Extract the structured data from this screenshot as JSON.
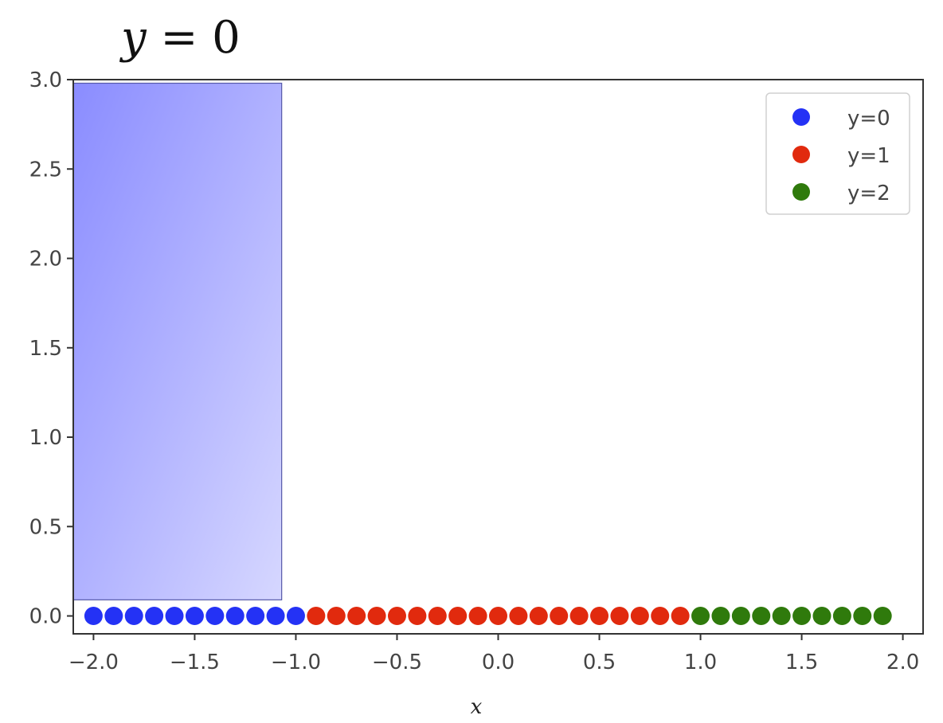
{
  "chart_data": {
    "type": "scatter",
    "title": "y = 0",
    "xlabel": "x",
    "ylabel": "",
    "xlim": [
      -2.1,
      2.1
    ],
    "ylim": [
      -0.1,
      3.0
    ],
    "grid": false,
    "legend_position": "top-right",
    "x_ticks": [
      -2.0,
      -1.5,
      -1.0,
      -0.5,
      0.0,
      0.5,
      1.0,
      1.5,
      2.0
    ],
    "x_tick_labels": [
      "−2.0",
      "−1.5",
      "−1.0",
      "−0.5",
      "0.0",
      "0.5",
      "1.0",
      "1.5",
      "2.0"
    ],
    "y_ticks": [
      0.0,
      0.5,
      1.0,
      1.5,
      2.0,
      2.5,
      3.0
    ],
    "y_tick_labels": [
      "0.0",
      "0.5",
      "1.0",
      "1.5",
      "2.0",
      "2.5",
      "3.0"
    ],
    "highlight_region": {
      "x": [
        -2.1,
        -1.07
      ],
      "y": [
        0.09,
        2.98
      ],
      "color": "#8a8cff"
    },
    "series": [
      {
        "name": "y=0",
        "color": "#2432f5",
        "x": [
          -2.0,
          -1.9,
          -1.8,
          -1.7,
          -1.6,
          -1.5,
          -1.4,
          -1.3,
          -1.2,
          -1.1,
          -1.0
        ],
        "y": [
          0,
          0,
          0,
          0,
          0,
          0,
          0,
          0,
          0,
          0,
          0
        ]
      },
      {
        "name": "y=1",
        "color": "#e12a0e",
        "x": [
          -0.9,
          -0.8,
          -0.7,
          -0.6,
          -0.5,
          -0.4,
          -0.3,
          -0.2,
          -0.1,
          0.0,
          0.1,
          0.2,
          0.3,
          0.4,
          0.5,
          0.6,
          0.7,
          0.8,
          0.9
        ],
        "y": [
          0,
          0,
          0,
          0,
          0,
          0,
          0,
          0,
          0,
          0,
          0,
          0,
          0,
          0,
          0,
          0,
          0,
          0,
          0
        ]
      },
      {
        "name": "y=2",
        "color": "#2f7a0c",
        "x": [
          1.0,
          1.1,
          1.2,
          1.3,
          1.4,
          1.5,
          1.6,
          1.7,
          1.8,
          1.9
        ],
        "y": [
          0,
          0,
          0,
          0,
          0,
          0,
          0,
          0,
          0,
          0
        ]
      }
    ]
  }
}
